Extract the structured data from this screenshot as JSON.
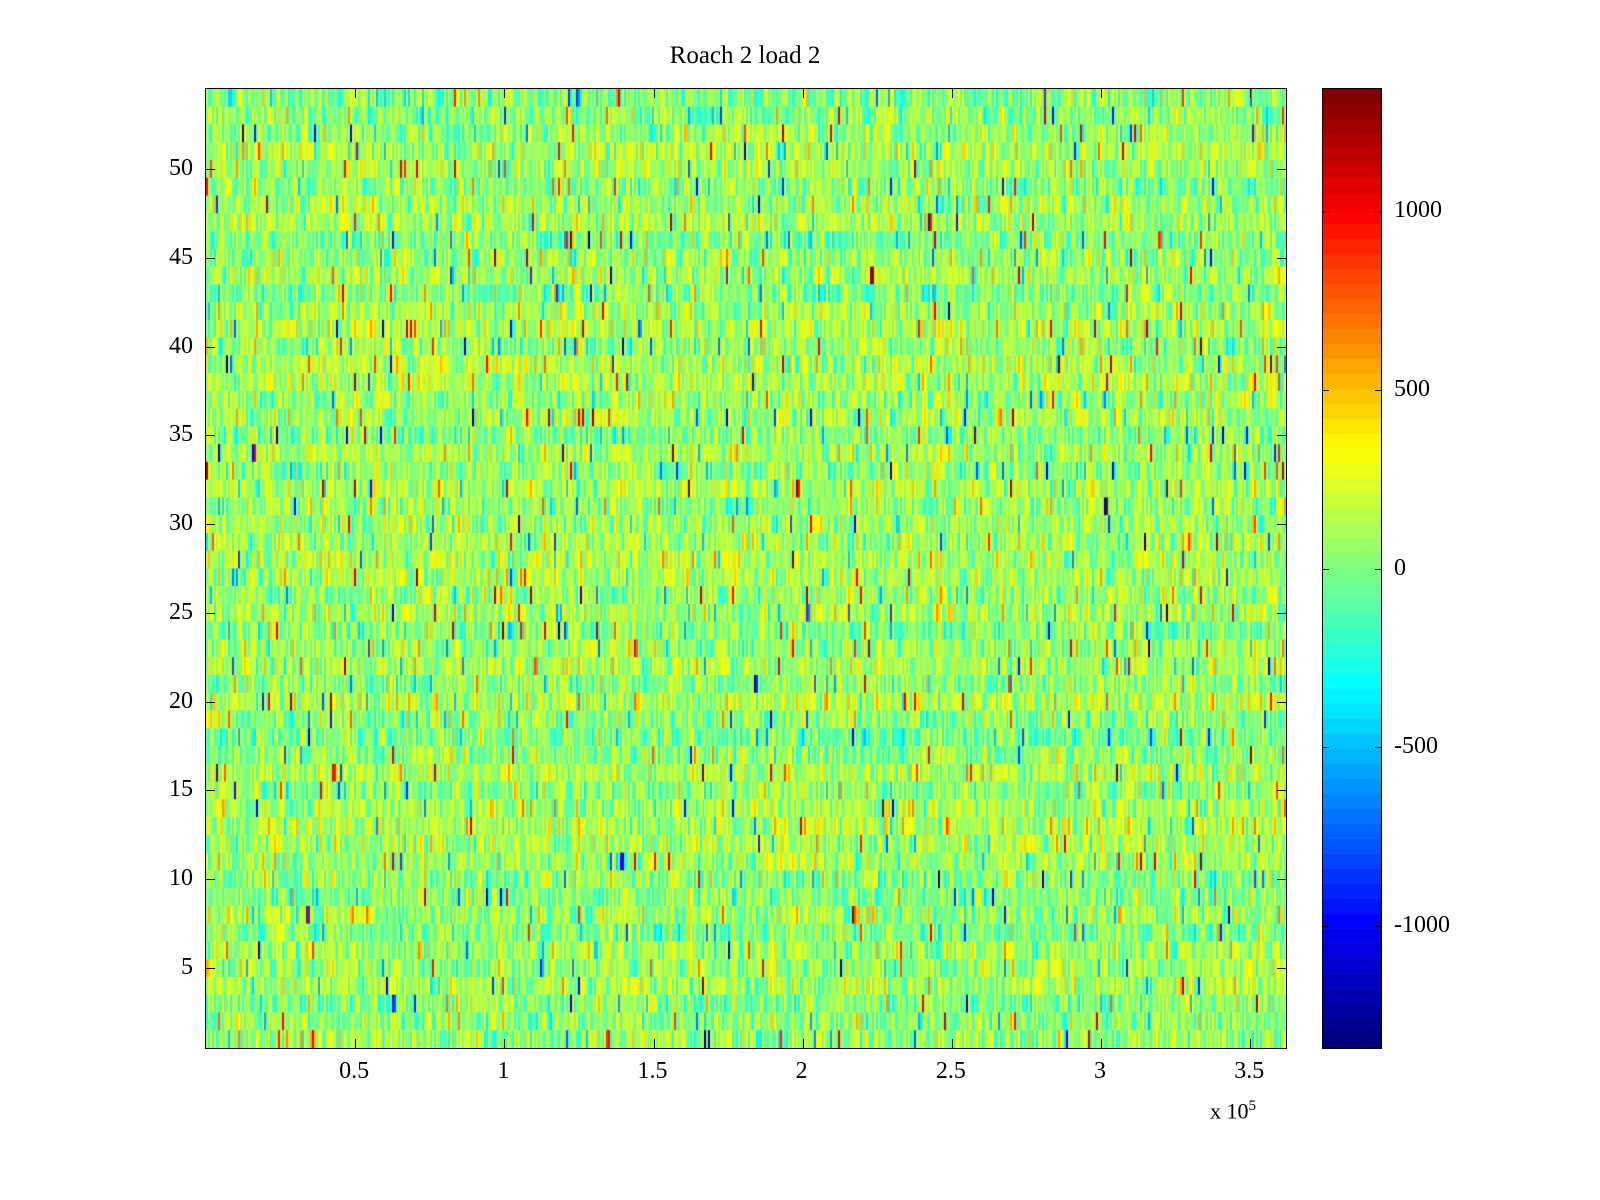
{
  "chart_data": {
    "type": "heatmap",
    "title": "Roach 2 load 2",
    "colormap": "jet",
    "x_axis": {
      "range": [
        0,
        362000
      ],
      "tick_values": [
        50000,
        100000,
        150000,
        200000,
        250000,
        300000,
        350000
      ],
      "tick_labels": [
        "0.5",
        "1",
        "1.5",
        "2",
        "2.5",
        "3",
        "3.5"
      ],
      "exponent_prefix": "x 10",
      "exponent": "5"
    },
    "y_axis": {
      "range": [
        0.5,
        54.5
      ],
      "tick_values": [
        5,
        10,
        15,
        20,
        25,
        30,
        35,
        40,
        45,
        50
      ],
      "tick_labels": [
        "5",
        "10",
        "15",
        "20",
        "25",
        "30",
        "35",
        "40",
        "45",
        "50"
      ]
    },
    "colorbar": {
      "clim": [
        -1340,
        1340
      ],
      "tick_values": [
        1000,
        500,
        0,
        -500,
        -1000
      ],
      "tick_labels": [
        "1000",
        "500",
        "0",
        "-500",
        "-1000"
      ],
      "discrete_steps": 64
    },
    "grid": {
      "rows": 54,
      "cols": 540
    },
    "noise_model": {
      "seed": 1337,
      "mean": 60,
      "std": 190,
      "row_band_amplitude": 70,
      "outlier_probability": 0.035,
      "outlier_min": 300,
      "outlier_max": 1100
    }
  }
}
